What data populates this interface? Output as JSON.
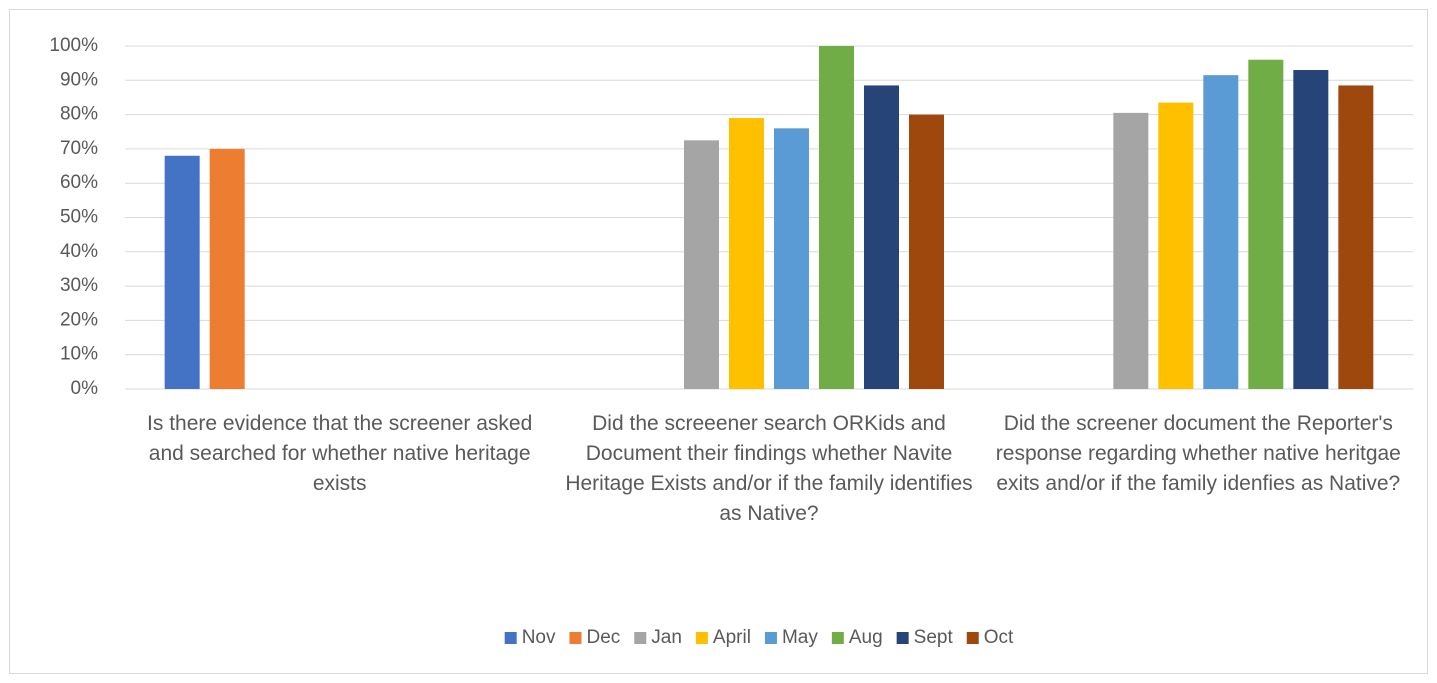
{
  "chart_data": {
    "type": "bar",
    "categories": [
      "Is there evidence that the screener asked and searched for whether native heritage exists",
      "Did the screeener search ORKids and Document their findings whether Navite Heritage Exists and/or if the family identifies as Native?",
      "Did the screener document the Reporter's response regarding whether native heritgae exits and/or if the family idenfies as Native?"
    ],
    "series": [
      {
        "name": "Nov",
        "color": "#4472c4",
        "values": [
          68,
          null,
          null
        ]
      },
      {
        "name": "Dec",
        "color": "#ed7d31",
        "values": [
          70,
          null,
          null
        ]
      },
      {
        "name": "Jan",
        "color": "#a5a5a5",
        "values": [
          null,
          72.5,
          80.5
        ]
      },
      {
        "name": "April",
        "color": "#ffc000",
        "values": [
          null,
          79,
          83.5
        ]
      },
      {
        "name": "May",
        "color": "#5b9bd5",
        "values": [
          null,
          76,
          91.5
        ]
      },
      {
        "name": "Aug",
        "color": "#70ad47",
        "values": [
          null,
          100,
          96
        ]
      },
      {
        "name": "Sept",
        "color": "#264478",
        "values": [
          null,
          88.5,
          93
        ]
      },
      {
        "name": "Oct",
        "color": "#9e480e",
        "values": [
          null,
          80,
          88.5
        ]
      }
    ],
    "ylim": [
      0,
      100
    ],
    "yticks": [
      {
        "value": 0,
        "label": "0%"
      },
      {
        "value": 10,
        "label": "10%"
      },
      {
        "value": 20,
        "label": "20%"
      },
      {
        "value": 30,
        "label": "30%"
      },
      {
        "value": 40,
        "label": "40%"
      },
      {
        "value": 50,
        "label": "50%"
      },
      {
        "value": 60,
        "label": "60%"
      },
      {
        "value": 70,
        "label": "70%"
      },
      {
        "value": 80,
        "label": "80%"
      },
      {
        "value": 90,
        "label": "90%"
      },
      {
        "value": 100,
        "label": "100%"
      }
    ],
    "grid": true,
    "legend": "bottom"
  }
}
